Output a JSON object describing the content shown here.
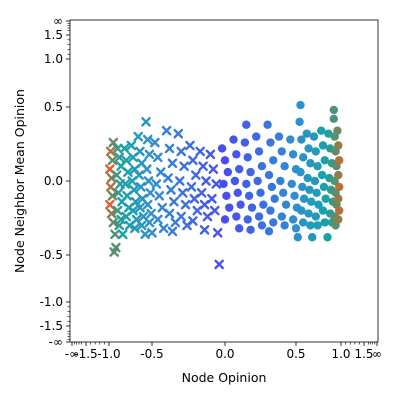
{
  "chart_data": {
    "type": "scatter",
    "xlabel": "Node Opinion",
    "ylabel": "Node Neighbor Mean Opinion",
    "x_scale": "logit-like (infinite ends)",
    "y_scale": "logit-like (infinite ends)",
    "x_ticks": [
      "-∞",
      "-1.5",
      "-1.0",
      "-0.5",
      "0.0",
      "0.5",
      "1.0",
      "1.5",
      "∞"
    ],
    "x_tick_values": [
      -1.8,
      -1.5,
      -1.0,
      -0.5,
      0.0,
      0.5,
      1.0,
      1.5,
      1.8
    ],
    "y_ticks": [
      "-∞",
      "-1.5",
      "-1.0",
      "-0.5",
      "0.0",
      "0.5",
      "1.0",
      "1.5",
      "∞"
    ],
    "y_tick_values": [
      -1.8,
      -1.5,
      -1.0,
      -0.5,
      0.0,
      0.5,
      1.0,
      1.5,
      1.8
    ],
    "grid": false,
    "legend": "none",
    "colors": {
      "center": "#4a4cf0",
      "mid": "#2f8fd0",
      "edge": "#16a3a8",
      "extreme": "#e0602a",
      "olive": "#6a8a60"
    },
    "series": [
      {
        "marker": "x",
        "points": [
          [
            -0.95,
            0.26
          ],
          [
            -0.98,
            0.2
          ],
          [
            -0.96,
            0.14
          ],
          [
            -0.99,
            0.08
          ],
          [
            -0.97,
            0.02
          ],
          [
            -0.98,
            -0.04
          ],
          [
            -0.96,
            -0.1
          ],
          [
            -0.99,
            -0.16
          ],
          [
            -0.97,
            -0.22
          ],
          [
            -0.95,
            -0.28
          ],
          [
            -0.93,
            -0.36
          ],
          [
            -0.92,
            -0.45
          ],
          [
            -0.94,
            -0.48
          ],
          [
            -0.9,
            0.22
          ],
          [
            -0.88,
            0.16
          ],
          [
            -0.86,
            0.1
          ],
          [
            -0.91,
            0.04
          ],
          [
            -0.87,
            -0.02
          ],
          [
            -0.89,
            -0.08
          ],
          [
            -0.85,
            -0.14
          ],
          [
            -0.9,
            -0.2
          ],
          [
            -0.86,
            -0.26
          ],
          [
            -0.88,
            -0.3
          ],
          [
            -0.84,
            -0.36
          ],
          [
            -0.82,
            0.22
          ],
          [
            -0.8,
            0.14
          ],
          [
            -0.78,
            0.06
          ],
          [
            -0.81,
            -0.02
          ],
          [
            -0.79,
            -0.1
          ],
          [
            -0.77,
            -0.18
          ],
          [
            -0.8,
            -0.24
          ],
          [
            -0.76,
            -0.3
          ],
          [
            -0.74,
            0.24
          ],
          [
            -0.72,
            0.16
          ],
          [
            -0.7,
            0.08
          ],
          [
            -0.73,
            0.0
          ],
          [
            -0.71,
            -0.06
          ],
          [
            -0.69,
            -0.14
          ],
          [
            -0.72,
            -0.2
          ],
          [
            -0.68,
            -0.26
          ],
          [
            -0.7,
            -0.32
          ],
          [
            -0.66,
            0.3
          ],
          [
            -0.64,
            0.2
          ],
          [
            -0.62,
            0.12
          ],
          [
            -0.65,
            0.04
          ],
          [
            -0.63,
            -0.04
          ],
          [
            -0.61,
            -0.12
          ],
          [
            -0.64,
            -0.18
          ],
          [
            -0.6,
            -0.24
          ],
          [
            -0.62,
            -0.3
          ],
          [
            -0.58,
            -0.36
          ],
          [
            -0.57,
            0.4
          ],
          [
            -0.55,
            0.28
          ],
          [
            -0.53,
            0.18
          ],
          [
            -0.56,
            0.08
          ],
          [
            -0.54,
            0.0
          ],
          [
            -0.52,
            -0.08
          ],
          [
            -0.55,
            -0.16
          ],
          [
            -0.51,
            -0.22
          ],
          [
            -0.53,
            -0.28
          ],
          [
            -0.5,
            -0.35
          ],
          [
            -0.48,
            0.26
          ],
          [
            -0.46,
            0.16
          ],
          [
            -0.44,
            0.06
          ],
          [
            -0.47,
            -0.02
          ],
          [
            -0.45,
            -0.1
          ],
          [
            -0.43,
            -0.18
          ],
          [
            -0.46,
            -0.26
          ],
          [
            -0.42,
            -0.32
          ],
          [
            -0.4,
            0.34
          ],
          [
            -0.38,
            0.22
          ],
          [
            -0.36,
            0.12
          ],
          [
            -0.39,
            0.02
          ],
          [
            -0.37,
            -0.06
          ],
          [
            -0.35,
            -0.14
          ],
          [
            -0.38,
            -0.22
          ],
          [
            -0.34,
            -0.28
          ],
          [
            -0.36,
            -0.34
          ],
          [
            -0.32,
            0.32
          ],
          [
            -0.3,
            0.2
          ],
          [
            -0.28,
            0.1
          ],
          [
            -0.31,
            0.0
          ],
          [
            -0.29,
            -0.08
          ],
          [
            -0.27,
            -0.16
          ],
          [
            -0.3,
            -0.24
          ],
          [
            -0.26,
            -0.3
          ],
          [
            -0.24,
            0.24
          ],
          [
            -0.22,
            0.14
          ],
          [
            -0.2,
            0.04
          ],
          [
            -0.23,
            -0.04
          ],
          [
            -0.21,
            -0.12
          ],
          [
            -0.19,
            -0.2
          ],
          [
            -0.22,
            -0.27
          ],
          [
            -0.17,
            0.2
          ],
          [
            -0.15,
            0.1
          ],
          [
            -0.13,
            0.0
          ],
          [
            -0.16,
            -0.08
          ],
          [
            -0.14,
            -0.16
          ],
          [
            -0.12,
            -0.24
          ],
          [
            -0.14,
            -0.33
          ],
          [
            -0.1,
            0.18
          ],
          [
            -0.08,
            0.08
          ],
          [
            -0.06,
            -0.02
          ],
          [
            -0.09,
            -0.12
          ],
          [
            -0.07,
            -0.2
          ],
          [
            -0.05,
            -0.35
          ],
          [
            -0.04,
            -0.6
          ]
        ]
      },
      {
        "marker": "o",
        "points": [
          [
            -0.02,
            0.22
          ],
          [
            0.0,
            0.14
          ],
          [
            0.02,
            0.06
          ],
          [
            -0.01,
            -0.02
          ],
          [
            0.01,
            -0.1
          ],
          [
            0.03,
            -0.18
          ],
          [
            0.0,
            -0.26
          ],
          [
            0.06,
            0.28
          ],
          [
            0.08,
            0.18
          ],
          [
            0.1,
            0.08
          ],
          [
            0.07,
            0.0
          ],
          [
            0.09,
            -0.08
          ],
          [
            0.11,
            -0.16
          ],
          [
            0.08,
            -0.24
          ],
          [
            0.1,
            -0.32
          ],
          [
            0.14,
            0.26
          ],
          [
            0.16,
            0.16
          ],
          [
            0.18,
            0.06
          ],
          [
            0.15,
            -0.02
          ],
          [
            0.17,
            -0.1
          ],
          [
            0.19,
            -0.18
          ],
          [
            0.16,
            -0.26
          ],
          [
            0.18,
            -0.33
          ],
          [
            0.22,
            0.3
          ],
          [
            0.24,
            0.2
          ],
          [
            0.26,
            0.1
          ],
          [
            0.23,
            0.0
          ],
          [
            0.25,
            -0.08
          ],
          [
            0.27,
            -0.16
          ],
          [
            0.24,
            -0.24
          ],
          [
            0.26,
            -0.3
          ],
          [
            0.3,
            0.38
          ],
          [
            0.32,
            0.26
          ],
          [
            0.34,
            0.14
          ],
          [
            0.31,
            0.04
          ],
          [
            0.33,
            -0.04
          ],
          [
            0.35,
            -0.12
          ],
          [
            0.32,
            -0.2
          ],
          [
            0.34,
            -0.28
          ],
          [
            0.31,
            -0.34
          ],
          [
            0.38,
            0.3
          ],
          [
            0.4,
            0.2
          ],
          [
            0.42,
            0.1
          ],
          [
            0.39,
            0.0
          ],
          [
            0.41,
            -0.08
          ],
          [
            0.43,
            -0.16
          ],
          [
            0.4,
            -0.24
          ],
          [
            0.42,
            -0.3
          ],
          [
            0.46,
            0.28
          ],
          [
            0.48,
            0.18
          ],
          [
            0.5,
            0.08
          ],
          [
            0.47,
            -0.02
          ],
          [
            0.49,
            -0.1
          ],
          [
            0.51,
            -0.18
          ],
          [
            0.48,
            -0.26
          ],
          [
            0.5,
            -0.32
          ],
          [
            0.52,
            -0.38
          ],
          [
            0.54,
            0.4
          ],
          [
            0.56,
            0.28
          ],
          [
            0.58,
            0.16
          ],
          [
            0.55,
            0.06
          ],
          [
            0.57,
            -0.04
          ],
          [
            0.59,
            -0.12
          ],
          [
            0.56,
            -0.2
          ],
          [
            0.58,
            -0.28
          ],
          [
            0.62,
            0.32
          ],
          [
            0.64,
            0.22
          ],
          [
            0.66,
            0.12
          ],
          [
            0.63,
            0.02
          ],
          [
            0.65,
            -0.06
          ],
          [
            0.67,
            -0.14
          ],
          [
            0.64,
            -0.22
          ],
          [
            0.66,
            -0.3
          ],
          [
            0.68,
            -0.38
          ],
          [
            0.7,
            0.3
          ],
          [
            0.72,
            0.2
          ],
          [
            0.74,
            0.1
          ],
          [
            0.71,
            0.0
          ],
          [
            0.73,
            -0.08
          ],
          [
            0.75,
            -0.16
          ],
          [
            0.72,
            -0.24
          ],
          [
            0.74,
            -0.3
          ],
          [
            0.78,
            0.34
          ],
          [
            0.8,
            0.24
          ],
          [
            0.82,
            0.14
          ],
          [
            0.79,
            0.04
          ],
          [
            0.81,
            -0.04
          ],
          [
            0.83,
            -0.12
          ],
          [
            0.8,
            -0.2
          ],
          [
            0.82,
            -0.28
          ],
          [
            0.85,
            -0.38
          ],
          [
            0.86,
            0.32
          ],
          [
            0.88,
            0.22
          ],
          [
            0.9,
            0.12
          ],
          [
            0.87,
            0.02
          ],
          [
            0.89,
            -0.06
          ],
          [
            0.91,
            -0.14
          ],
          [
            0.88,
            -0.22
          ],
          [
            0.9,
            -0.28
          ],
          [
            0.92,
            0.42
          ],
          [
            0.93,
            0.3
          ],
          [
            0.94,
            0.2
          ],
          [
            0.95,
            0.1
          ],
          [
            0.93,
            0.0
          ],
          [
            0.94,
            -0.08
          ],
          [
            0.95,
            -0.16
          ],
          [
            0.93,
            -0.24
          ],
          [
            0.94,
            -0.3
          ],
          [
            0.96,
            0.34
          ],
          [
            0.97,
            0.24
          ],
          [
            0.98,
            0.14
          ],
          [
            0.97,
            0.04
          ],
          [
            0.98,
            -0.04
          ],
          [
            0.97,
            -0.12
          ],
          [
            0.98,
            -0.2
          ],
          [
            0.97,
            -0.26
          ],
          [
            0.92,
            0.48
          ],
          [
            0.55,
            0.52
          ],
          [
            0.15,
            0.38
          ]
        ]
      }
    ]
  }
}
